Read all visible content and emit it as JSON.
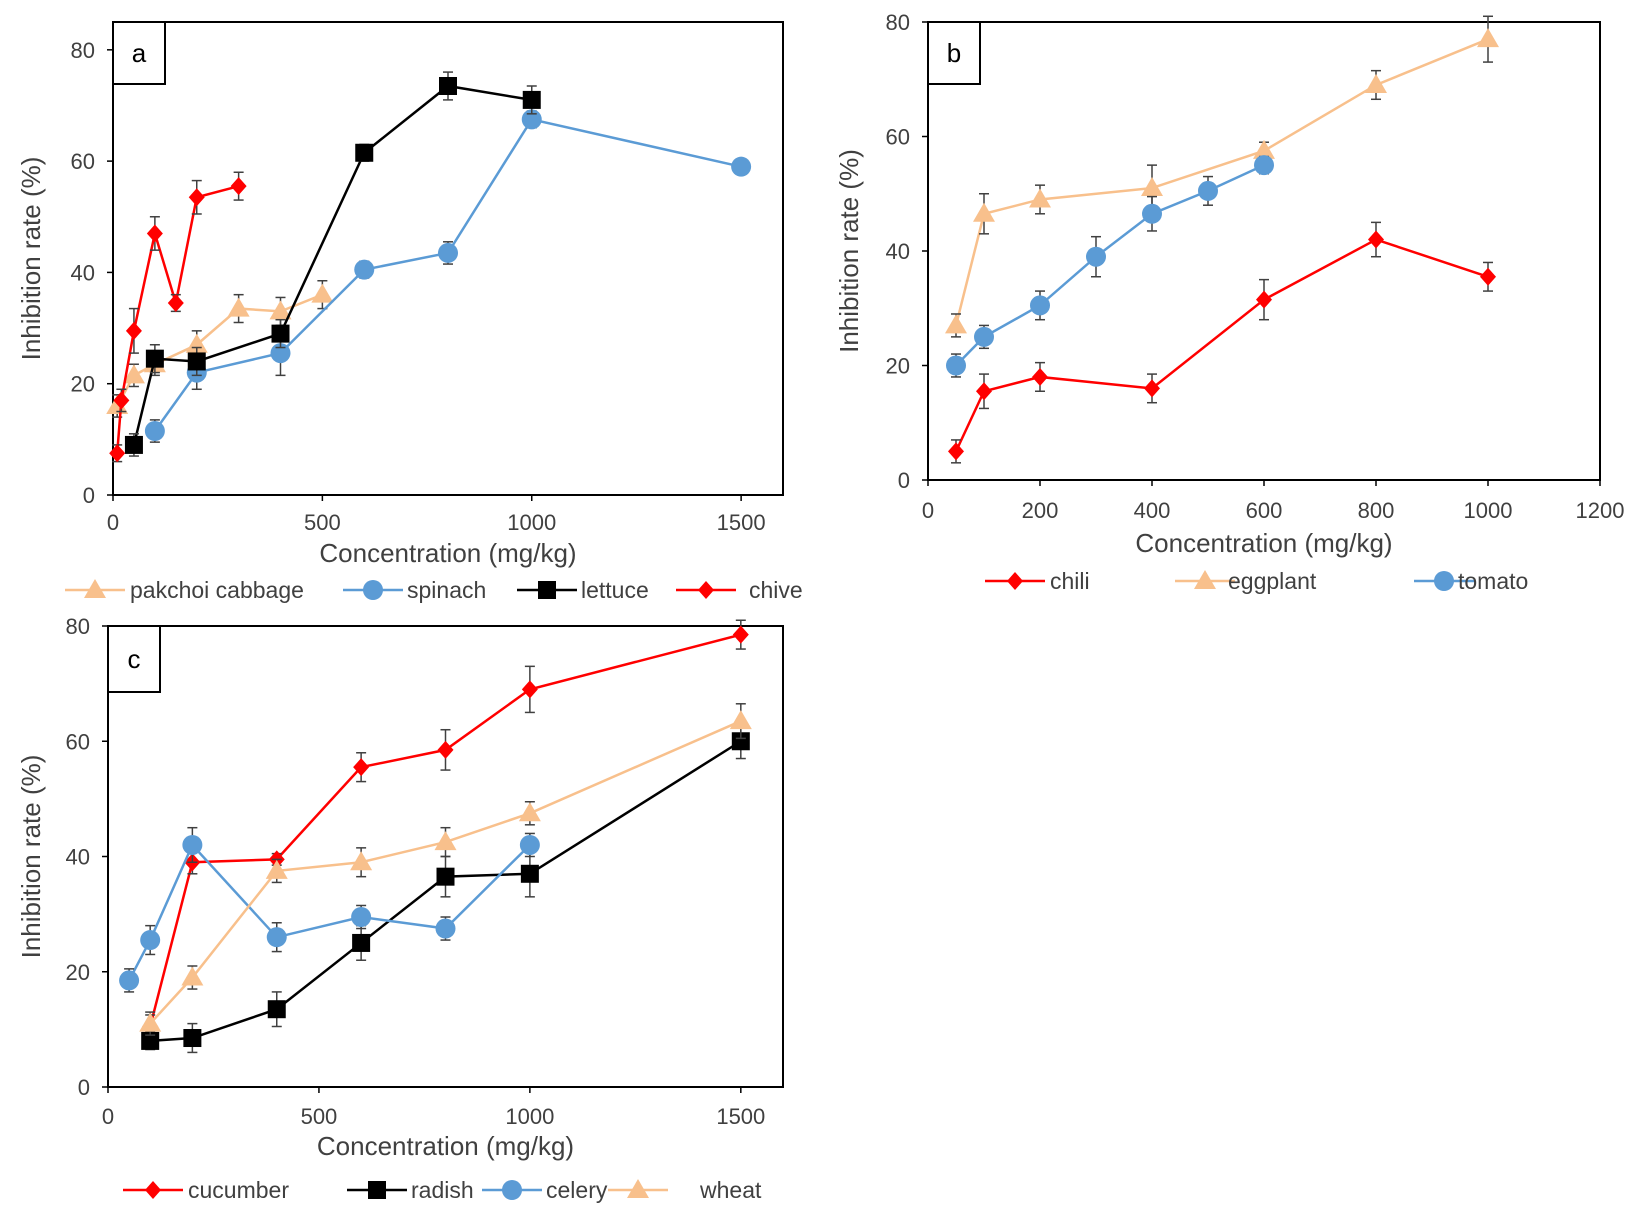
{
  "chart_data": [
    {
      "panel_label": "a",
      "type": "line",
      "xlabel": "Concentration (mg/kg)",
      "ylabel": "Inhibition rate (%)",
      "xlim": [
        0,
        1600
      ],
      "ylim": [
        0,
        85
      ],
      "xticks": [
        0,
        500,
        1000,
        1500
      ],
      "yticks": [
        0,
        20,
        40,
        60,
        80
      ],
      "legend_position": "bottom",
      "series": [
        {
          "name": "pakchoi cabbage",
          "marker": "triangle",
          "color": "#F8C08C",
          "x": [
            10,
            50,
            100,
            200,
            300,
            400,
            500
          ],
          "y": [
            16,
            21.5,
            23.5,
            27,
            33.5,
            33,
            36
          ],
          "err": [
            2,
            2,
            2,
            2.5,
            2.5,
            2.5,
            2.5
          ]
        },
        {
          "name": "spinach",
          "marker": "circle",
          "color": "#5B9BD5",
          "x": [
            100,
            200,
            400,
            600,
            800,
            1000,
            1500
          ],
          "y": [
            11.5,
            22,
            25.5,
            40.5,
            43.5,
            67.5,
            59
          ],
          "err": [
            2,
            3,
            4,
            1.5,
            2,
            1.5,
            1
          ]
        },
        {
          "name": "lettuce",
          "marker": "square",
          "color": "#000000",
          "x": [
            50,
            100,
            200,
            400,
            600,
            800,
            1000
          ],
          "y": [
            9,
            24.5,
            24,
            29,
            61.5,
            73.5,
            71
          ],
          "err": [
            2,
            2.5,
            2.5,
            2.5,
            1.5,
            2.5,
            2.5
          ]
        },
        {
          "name": "chive",
          "marker": "diamond",
          "color": "#FF0000",
          "x": [
            10,
            20,
            50,
            100,
            150,
            200,
            300
          ],
          "y": [
            7.5,
            17,
            29.5,
            47,
            34.5,
            53.5,
            55.5
          ],
          "err": [
            1.5,
            2,
            4,
            3,
            1.5,
            3,
            2.5
          ]
        }
      ]
    },
    {
      "panel_label": "b",
      "type": "line",
      "xlabel": "Concentration (mg/kg)",
      "ylabel": "Inhibition rate (%)",
      "xlim": [
        0,
        1200
      ],
      "ylim": [
        0,
        80
      ],
      "xticks": [
        0,
        200,
        400,
        600,
        800,
        1000,
        1200
      ],
      "yticks": [
        0,
        20,
        40,
        60,
        80
      ],
      "legend_position": "bottom",
      "series": [
        {
          "name": "chili",
          "marker": "diamond",
          "color": "#FF0000",
          "x": [
            50,
            100,
            200,
            400,
            600,
            800,
            1000
          ],
          "y": [
            5,
            15.5,
            18,
            16,
            31.5,
            42,
            35.5
          ],
          "err": [
            2,
            3,
            2.5,
            2.5,
            3.5,
            3,
            2.5
          ]
        },
        {
          "name": "eggplant",
          "marker": "triangle",
          "color": "#F8C08C",
          "x": [
            50,
            100,
            200,
            400,
            600,
            800,
            1000
          ],
          "y": [
            27,
            46.5,
            49,
            51,
            57.5,
            69,
            77
          ],
          "err": [
            2,
            3.5,
            2.5,
            4,
            1.5,
            2.5,
            4
          ]
        },
        {
          "name": "tomato",
          "marker": "circle",
          "color": "#5B9BD5",
          "x": [
            50,
            100,
            200,
            300,
            400,
            500,
            600
          ],
          "y": [
            20,
            25,
            30.5,
            39,
            46.5,
            50.5,
            55
          ],
          "err": [
            2,
            2,
            2.5,
            3.5,
            3,
            2.5,
            1.5
          ]
        }
      ]
    },
    {
      "panel_label": "c",
      "type": "line",
      "xlabel": "Concentration (mg/kg)",
      "ylabel": "Inhibition rate (%)",
      "xlim": [
        0,
        1600
      ],
      "ylim": [
        0,
        80
      ],
      "xticks": [
        0,
        500,
        1000,
        1500
      ],
      "yticks": [
        0,
        20,
        40,
        60,
        80
      ],
      "legend_position": "bottom",
      "series": [
        {
          "name": "cucumber",
          "marker": "diamond",
          "color": "#FF0000",
          "x": [
            100,
            200,
            400,
            600,
            800,
            1000,
            1500
          ],
          "y": [
            10.5,
            39,
            39.5,
            55.5,
            58.5,
            69,
            78.5
          ],
          "err": [
            2,
            2,
            1,
            2.5,
            3.5,
            4,
            2.5
          ]
        },
        {
          "name": "radish",
          "marker": "square",
          "color": "#000000",
          "x": [
            100,
            200,
            400,
            600,
            800,
            1000,
            1500
          ],
          "y": [
            8,
            8.5,
            13.5,
            25,
            36.5,
            37,
            60
          ],
          "err": [
            1.5,
            2.5,
            3,
            3,
            3.5,
            4,
            3
          ]
        },
        {
          "name": "celery",
          "marker": "circle",
          "color": "#5B9BD5",
          "x": [
            50,
            100,
            200,
            400,
            600,
            800,
            1000
          ],
          "y": [
            18.5,
            25.5,
            42,
            26,
            29.5,
            27.5,
            42
          ],
          "err": [
            2,
            2.5,
            3,
            2.5,
            2,
            2,
            2
          ]
        },
        {
          "name": "wheat",
          "marker": "triangle",
          "color": "#F8C08C",
          "x": [
            100,
            200,
            400,
            600,
            800,
            1000,
            1500
          ],
          "y": [
            11,
            19,
            37.5,
            39,
            42.5,
            47.5,
            63.5
          ],
          "err": [
            2,
            2,
            2,
            2.5,
            2.5,
            2,
            3
          ]
        }
      ]
    }
  ]
}
